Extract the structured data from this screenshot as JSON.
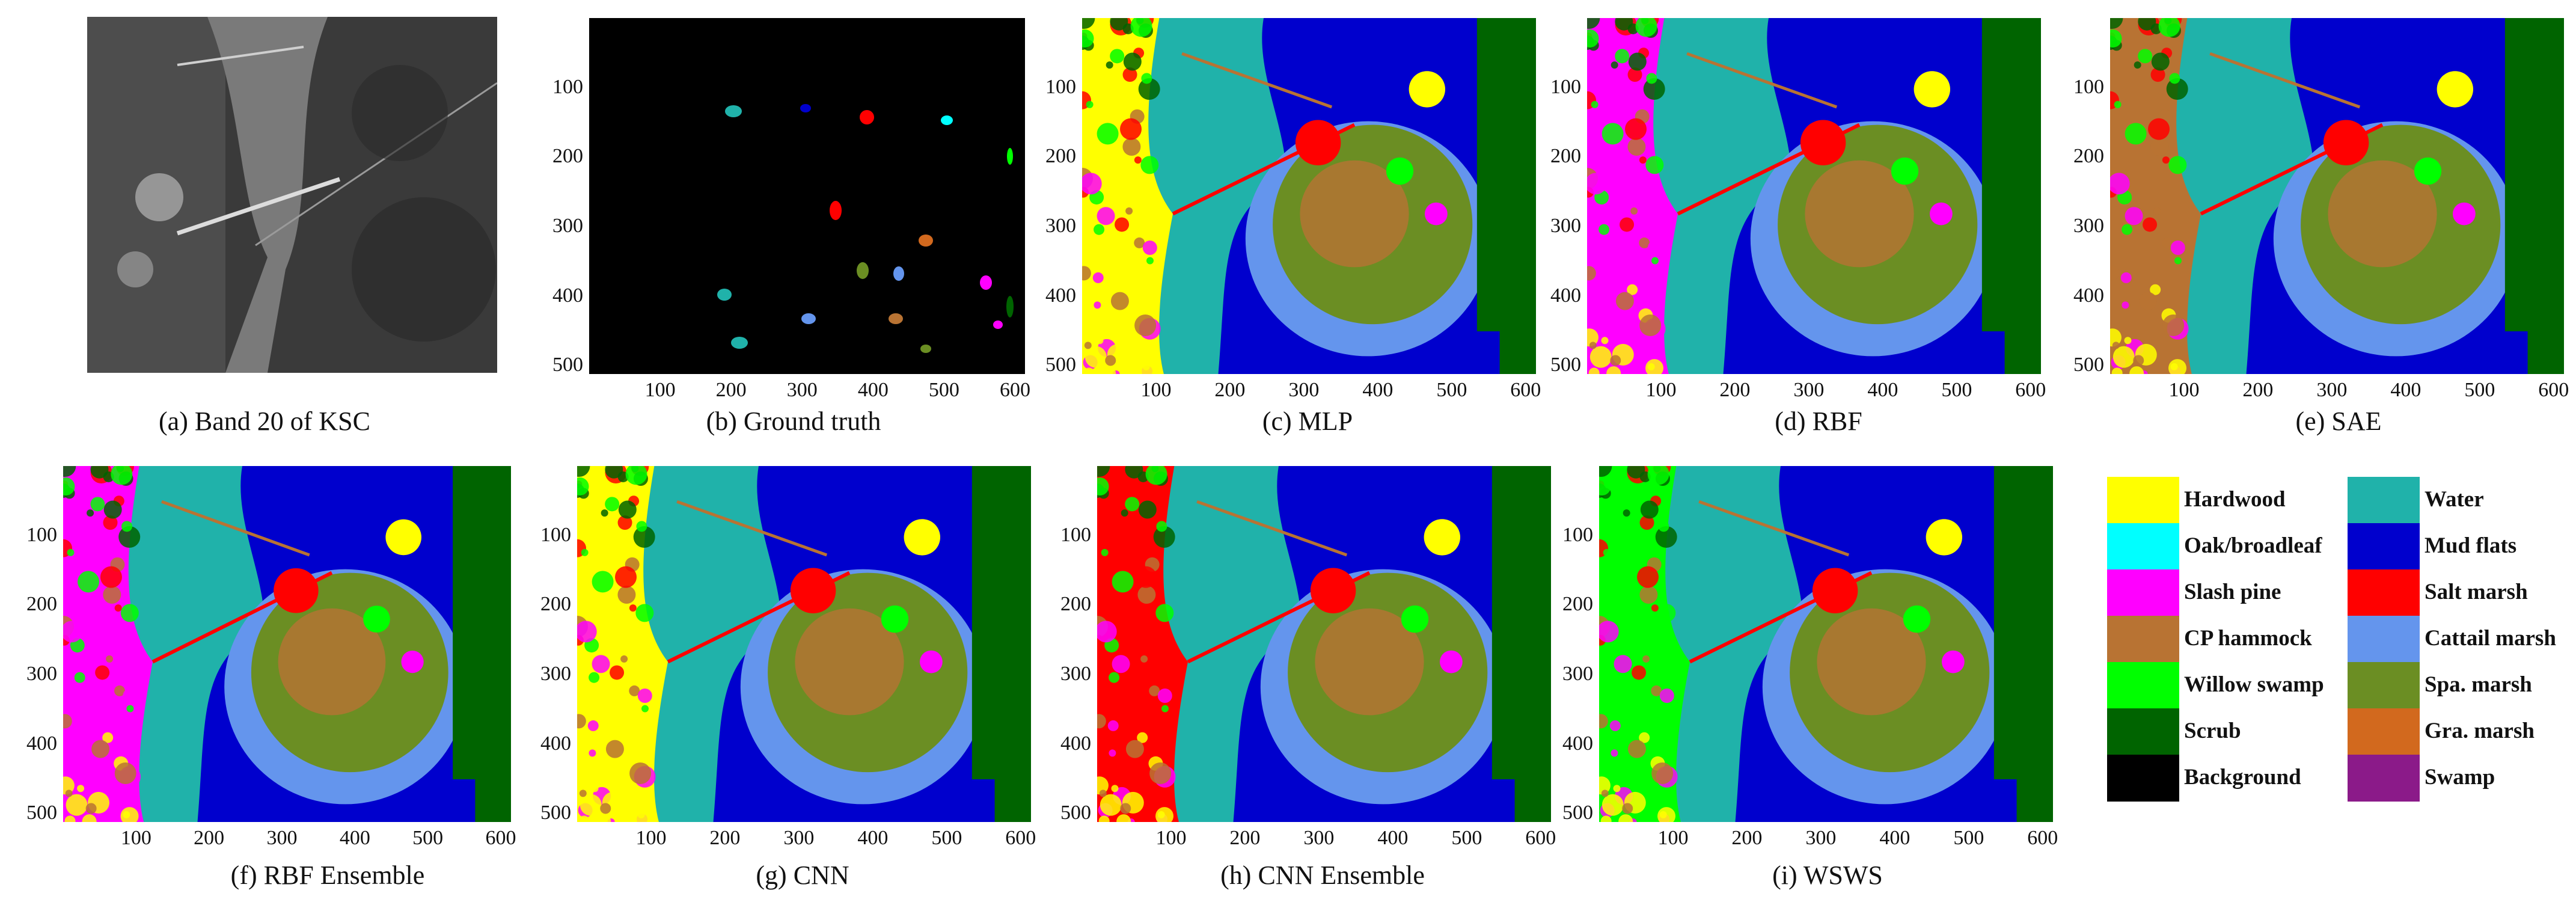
{
  "figure": {
    "panels": [
      {
        "id": "a",
        "caption": "(a) Band 20 of KSC",
        "kind": "band",
        "axes": false
      },
      {
        "id": "b",
        "caption": "(b) Ground truth",
        "kind": "truth",
        "axes": true
      },
      {
        "id": "c",
        "caption": "(c) MLP",
        "kind": "map",
        "axes": true,
        "tint": "yellow"
      },
      {
        "id": "d",
        "caption": "(d) RBF",
        "kind": "map",
        "axes": true,
        "tint": "magenta"
      },
      {
        "id": "e",
        "caption": "(e) SAE",
        "kind": "map",
        "axes": true,
        "tint": "brown"
      },
      {
        "id": "f",
        "caption": "(f) RBF Ensemble",
        "kind": "map",
        "axes": true,
        "tint": "magenta"
      },
      {
        "id": "g",
        "caption": "(g) CNN",
        "kind": "map",
        "axes": true,
        "tint": "yellow"
      },
      {
        "id": "h",
        "caption": "(h) CNN Ensemble",
        "kind": "map",
        "axes": true,
        "tint": "red"
      },
      {
        "id": "i",
        "caption": "(i) WSWS",
        "kind": "map",
        "axes": true,
        "tint": "green"
      }
    ],
    "axis": {
      "y_ticks": [
        "100",
        "200",
        "300",
        "400",
        "500"
      ],
      "x_ticks": [
        "100",
        "200",
        "300",
        "400",
        "500",
        "600"
      ]
    },
    "legend": [
      {
        "label": "Hardwood",
        "color": "#ffff00"
      },
      {
        "label": "Oak/broadleaf",
        "color": "#00ffff"
      },
      {
        "label": "Slash pine",
        "color": "#ff00ff"
      },
      {
        "label": "CP hammock",
        "color": "#b87333"
      },
      {
        "label": "Willow swamp",
        "color": "#00ff00"
      },
      {
        "label": "Scrub",
        "color": "#006400"
      },
      {
        "label": "Background",
        "color": "#000000"
      },
      {
        "label": "Water",
        "color": "#20b2aa"
      },
      {
        "label": "Mud flats",
        "color": "#0000cd"
      },
      {
        "label": "Salt marsh",
        "color": "#ff0000"
      },
      {
        "label": "Cattail marsh",
        "color": "#6495ed"
      },
      {
        "label": "Spa. marsh",
        "color": "#6b8e23"
      },
      {
        "label": "Gra. marsh",
        "color": "#d2691e"
      },
      {
        "label": "Swamp",
        "color": "#8b1a89"
      }
    ]
  }
}
